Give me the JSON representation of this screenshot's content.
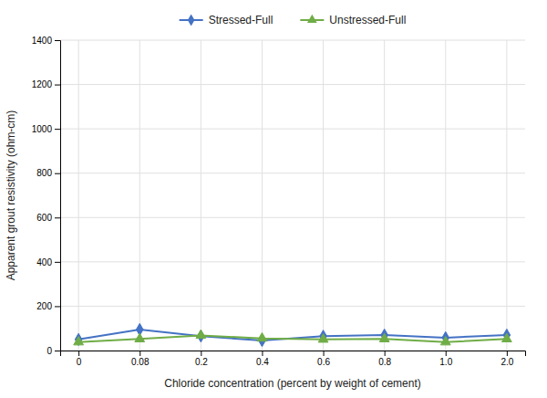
{
  "chart_data": {
    "type": "line",
    "xlabel": "Chloride concentration (percent by weight of cement)",
    "ylabel": "Apparent grout resistivity (ohm-cm)",
    "categories": [
      "0",
      "0.08",
      "0.2",
      "0.4",
      "0.6",
      "0.8",
      "1.0",
      "2.0"
    ],
    "series": [
      {
        "name": "Stressed-Full",
        "color": "#4472C4",
        "marker": "diamond",
        "values": [
          50,
          95,
          65,
          45,
          65,
          70,
          58,
          70
        ]
      },
      {
        "name": "Unstressed-Full",
        "color": "#70AD47",
        "marker": "triangle",
        "values": [
          38,
          52,
          68,
          55,
          50,
          52,
          38,
          52
        ]
      }
    ],
    "ylim": [
      0,
      1400
    ],
    "yticks": [
      0,
      200,
      400,
      600,
      800,
      1000,
      1200,
      1400
    ],
    "grid": true,
    "legend": "top"
  }
}
